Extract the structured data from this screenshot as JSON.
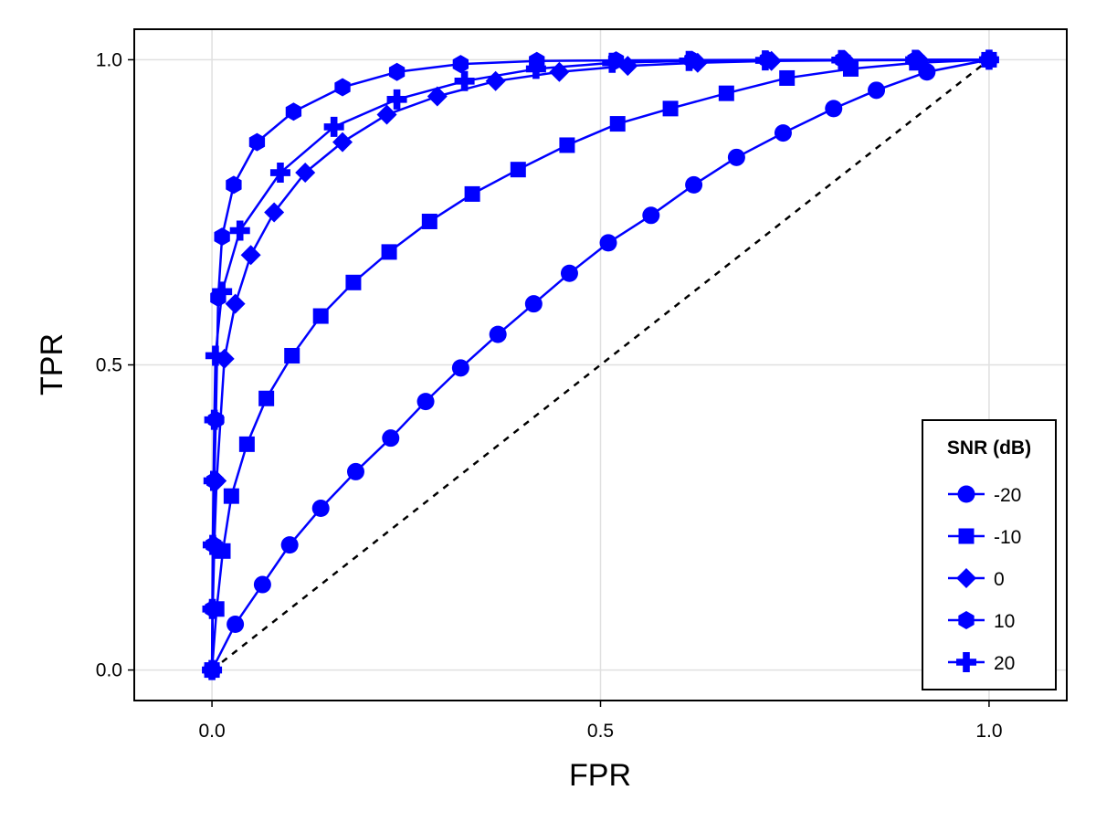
{
  "chart_data": {
    "type": "line",
    "title": "",
    "xlabel": "FPR",
    "ylabel": "TPR",
    "xlim": [
      -0.1,
      1.1
    ],
    "ylim": [
      -0.05,
      1.05
    ],
    "x_ticks": [
      0.0,
      0.5,
      1.0
    ],
    "x_tick_labels": [
      "0.0",
      "0.5",
      "1.0"
    ],
    "y_ticks": [
      0.0,
      0.5,
      1.0
    ],
    "y_tick_labels": [
      "0.0",
      "0.5",
      "1.0"
    ],
    "grid": true,
    "legend": {
      "title": "SNR (dB)",
      "placement": "bottom-right"
    },
    "series_color": "#0000ff",
    "reference_line": {
      "style": "dashed",
      "color": "#000000",
      "x": [
        0,
        1
      ],
      "y": [
        0,
        1
      ]
    },
    "series": [
      {
        "name": "-20",
        "marker": "circle",
        "x": [
          0,
          0.03,
          0.065,
          0.1,
          0.14,
          0.185,
          0.23,
          0.275,
          0.32,
          0.368,
          0.414,
          0.46,
          0.51,
          0.565,
          0.62,
          0.675,
          0.735,
          0.8,
          0.855,
          0.92,
          1.0
        ],
        "y": [
          0,
          0.075,
          0.14,
          0.205,
          0.265,
          0.325,
          0.38,
          0.44,
          0.495,
          0.55,
          0.6,
          0.65,
          0.7,
          0.745,
          0.795,
          0.84,
          0.88,
          0.92,
          0.95,
          0.98,
          1.0
        ]
      },
      {
        "name": "-10",
        "marker": "square",
        "x": [
          0,
          0.006,
          0.014,
          0.025,
          0.045,
          0.07,
          0.103,
          0.14,
          0.182,
          0.228,
          0.28,
          0.335,
          0.394,
          0.457,
          0.522,
          0.59,
          0.662,
          0.74,
          0.822,
          0.907,
          1.0
        ],
        "y": [
          0,
          0.1,
          0.195,
          0.285,
          0.37,
          0.445,
          0.515,
          0.58,
          0.635,
          0.685,
          0.735,
          0.78,
          0.82,
          0.86,
          0.895,
          0.92,
          0.945,
          0.97,
          0.985,
          0.995,
          1.0
        ]
      },
      {
        "name": "0",
        "marker": "diamond",
        "x": [
          0,
          0.001,
          0.003,
          0.006,
          0.016,
          0.03,
          0.05,
          0.08,
          0.12,
          0.168,
          0.225,
          0.29,
          0.365,
          0.447,
          0.535,
          0.625,
          0.72,
          0.815,
          0.91,
          1.0
        ],
        "y": [
          0,
          0.1,
          0.205,
          0.31,
          0.51,
          0.6,
          0.68,
          0.75,
          0.815,
          0.865,
          0.91,
          0.94,
          0.965,
          0.98,
          0.99,
          0.995,
          0.998,
          0.999,
          0.9995,
          1.0
        ]
      },
      {
        "name": "10",
        "marker": "hexagon",
        "x": [
          0,
          0.001,
          0.002,
          0.003,
          0.005,
          0.008,
          0.013,
          0.028,
          0.058,
          0.105,
          0.168,
          0.238,
          0.32,
          0.418,
          0.52,
          0.618,
          0.715,
          0.812,
          0.905,
          1.0
        ],
        "y": [
          0,
          0.1,
          0.205,
          0.31,
          0.41,
          0.61,
          0.71,
          0.795,
          0.865,
          0.915,
          0.955,
          0.98,
          0.993,
          0.998,
          0.999,
          0.9995,
          0.9998,
          0.9999,
          0.99995,
          1.0
        ]
      },
      {
        "name": "20",
        "marker": "cross",
        "x": [
          0,
          0.0005,
          0.001,
          0.002,
          0.003,
          0.0045,
          0.013,
          0.036,
          0.088,
          0.157,
          0.238,
          0.325,
          0.417,
          0.515,
          0.614,
          0.712,
          0.81,
          0.905,
          1.0
        ],
        "y": [
          0,
          0.1,
          0.205,
          0.31,
          0.41,
          0.515,
          0.62,
          0.72,
          0.815,
          0.89,
          0.935,
          0.965,
          0.985,
          0.995,
          0.998,
          0.999,
          0.9995,
          0.9999,
          1.0
        ]
      }
    ]
  }
}
